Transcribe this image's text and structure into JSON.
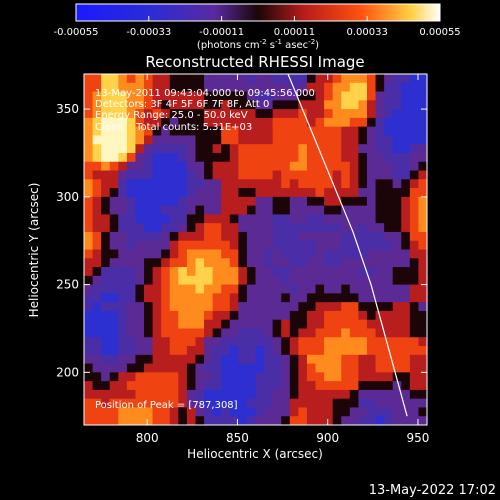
{
  "chart_data": {
    "type": "heatmap",
    "title": "Reconstructed RHESSI Image",
    "xlabel": "Heliocentric X (arcsec)",
    "ylabel": "Heliocentric Y (arcsec)",
    "xlim": [
      765,
      955
    ],
    "ylim": [
      170,
      370
    ],
    "x_ticks": [
      800,
      850,
      900,
      950
    ],
    "y_ticks": [
      200,
      250,
      300,
      350
    ],
    "colorbar": {
      "ticks": [
        "-0.00055",
        "-0.00033",
        "-0.00011",
        "0.00011",
        "0.00033",
        "0.00055"
      ],
      "range": [
        -0.00055,
        0.00055
      ],
      "label_main": "(photons cm",
      "label_sup1": "-2",
      "label_mid1": " s",
      "label_sup2": "-1",
      "label_mid2": " asec",
      "label_sup3": "-2",
      "label_end": ")"
    },
    "info_lines": [
      "13-May-2011 09:43:04.000 to 09:45:56.000",
      "Detectors: 3F 4F 5F 6F 7F 8F, Att 0",
      "Energy Range: 25.0 - 50.0 keV",
      "Clean    Total counts: 5.31E+03"
    ],
    "peak_label": "Position of Peak = [787,308]",
    "limb_curve": [
      [
        878,
        370
      ],
      [
        890,
        340
      ],
      [
        902,
        310
      ],
      [
        914,
        280
      ],
      [
        924,
        250
      ],
      [
        932,
        220
      ],
      [
        940,
        190
      ],
      [
        944,
        175
      ]
    ]
  },
  "footer": {
    "timestamp": "13-May-2022 17:02"
  }
}
